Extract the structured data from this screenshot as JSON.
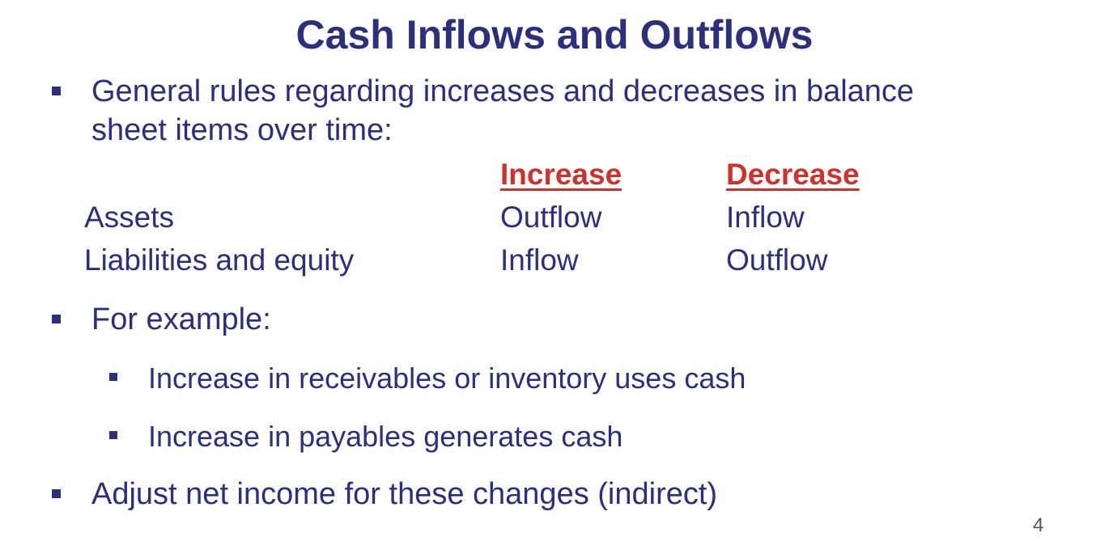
{
  "slide": {
    "title": "Cash Inflows and Outflows",
    "page_number": "4"
  },
  "bullets": {
    "general_rules": {
      "line1": "General rules regarding increases and decreases in balance",
      "line2": "sheet items over time:"
    },
    "for_example": "For example:",
    "sub": [
      "Increase in receivables or inventory uses cash",
      "Increase in payables generates cash"
    ],
    "adjust": "Adjust net income for these changes (indirect)"
  },
  "table": {
    "headers": [
      "Increase",
      "Decrease"
    ],
    "rows": [
      {
        "label": "Assets",
        "increase": "Outflow",
        "decrease": "Inflow"
      },
      {
        "label": "Liabilities and equity",
        "increase": "Inflow",
        "decrease": "Outflow"
      }
    ]
  },
  "colors": {
    "text": "#2b2f7e",
    "header_accent": "#d0312d",
    "background": "#ffffff"
  }
}
